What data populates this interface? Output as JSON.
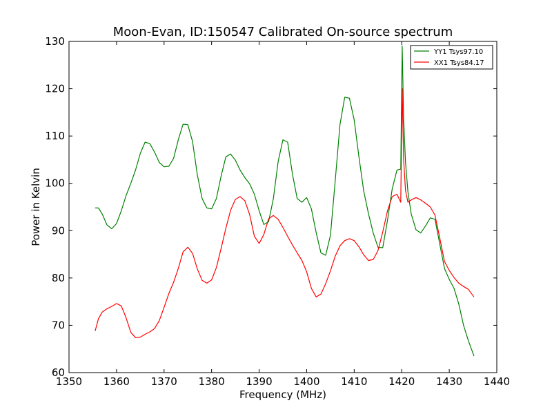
{
  "chart_data": {
    "type": "line",
    "title": "Moon-Evan, ID:150547 Calibrated On-source spectrum",
    "xlabel": "Frequency (MHz)",
    "ylabel": "Power in Kelvin",
    "xlim": [
      1350,
      1440
    ],
    "ylim": [
      60,
      130
    ],
    "xticks": [
      1350,
      1360,
      1370,
      1380,
      1390,
      1400,
      1410,
      1420,
      1430,
      1440
    ],
    "yticks": [
      60,
      70,
      80,
      90,
      100,
      110,
      120,
      130
    ],
    "legend_position": "top-right",
    "series": [
      {
        "name": "YY1 Tsys97.10",
        "color": "#008000",
        "x": [
          1355.5,
          1356.2,
          1357,
          1358,
          1359,
          1360,
          1361,
          1362,
          1363,
          1364,
          1365,
          1366,
          1367,
          1368,
          1369,
          1370,
          1371,
          1372,
          1373,
          1374,
          1375,
          1376,
          1377,
          1378,
          1379,
          1380,
          1381,
          1382,
          1383,
          1384,
          1385,
          1386,
          1387,
          1388,
          1389,
          1390,
          1391,
          1392,
          1393,
          1394,
          1395,
          1396,
          1397,
          1398,
          1399,
          1400,
          1401,
          1402,
          1403,
          1404,
          1405,
          1406,
          1407,
          1408,
          1409,
          1410,
          1411,
          1412,
          1413,
          1414,
          1415,
          1416,
          1417,
          1418,
          1419,
          1419.8,
          1420.1,
          1420.4,
          1420.8,
          1421.3,
          1422,
          1423,
          1424,
          1425,
          1426,
          1427,
          1428,
          1429,
          1430,
          1431,
          1432,
          1433,
          1434,
          1435.2
        ],
        "values": [
          94.8,
          94.8,
          93.5,
          91.2,
          90.4,
          91.5,
          94.2,
          97.4,
          100.0,
          102.8,
          106.3,
          108.7,
          108.4,
          106.6,
          104.4,
          103.5,
          103.6,
          105.3,
          109.2,
          112.5,
          112.4,
          108.8,
          101.8,
          96.8,
          94.8,
          94.6,
          96.8,
          101.5,
          105.6,
          106.2,
          104.9,
          102.8,
          101.2,
          99.9,
          97.7,
          94.2,
          91.3,
          91.9,
          96.8,
          104.6,
          109.2,
          108.7,
          102.0,
          96.8,
          96.0,
          97.0,
          94.6,
          89.6,
          85.3,
          84.8,
          89.0,
          100.5,
          112.4,
          118.2,
          118.0,
          113.4,
          105.6,
          98.4,
          93.6,
          89.5,
          86.5,
          86.4,
          92.2,
          98.8,
          102.8,
          103.0,
          129.0,
          113.5,
          104.5,
          98.2,
          93.5,
          90.2,
          89.5,
          91.0,
          92.7,
          92.4,
          87.2,
          82.0,
          79.7,
          77.8,
          74.5,
          70.0,
          66.8,
          63.5
        ]
      },
      {
        "name": "XX1 Tsys84.17",
        "color": "#ff0000",
        "x": [
          1355.5,
          1356.2,
          1357,
          1358,
          1359,
          1360,
          1361,
          1362,
          1363,
          1364,
          1365,
          1366,
          1367,
          1368,
          1369,
          1370,
          1371,
          1372,
          1373,
          1374,
          1375,
          1376,
          1377,
          1378,
          1379,
          1380,
          1381,
          1382,
          1383,
          1384,
          1385,
          1386,
          1387,
          1388,
          1389,
          1390,
          1391,
          1392,
          1393,
          1394,
          1395,
          1396,
          1397,
          1398,
          1399,
          1400,
          1401,
          1402,
          1403,
          1404,
          1405,
          1406,
          1407,
          1408,
          1409,
          1410,
          1411,
          1412,
          1413,
          1414,
          1415,
          1416,
          1417,
          1418,
          1419,
          1419.8,
          1420.1,
          1420.4,
          1420.8,
          1421.3,
          1422,
          1423,
          1424,
          1425,
          1426,
          1427,
          1428,
          1429,
          1430,
          1431,
          1432,
          1433,
          1434,
          1435.2
        ],
        "values": [
          68.8,
          71.4,
          72.8,
          73.5,
          74.0,
          74.6,
          74.1,
          71.6,
          68.5,
          67.4,
          67.5,
          68.1,
          68.6,
          69.3,
          71.0,
          73.8,
          76.7,
          79.1,
          82.0,
          85.5,
          86.5,
          85.2,
          81.9,
          79.5,
          78.9,
          79.6,
          82.2,
          86.2,
          90.5,
          94.3,
          96.6,
          97.2,
          96.3,
          93.4,
          88.8,
          87.3,
          89.2,
          92.5,
          93.2,
          92.4,
          90.7,
          88.8,
          87.0,
          85.3,
          83.7,
          81.3,
          77.8,
          76.0,
          76.6,
          78.8,
          81.5,
          84.6,
          86.8,
          87.9,
          88.3,
          87.9,
          86.6,
          84.9,
          83.7,
          83.9,
          85.8,
          89.7,
          94.2,
          97.2,
          97.7,
          96.0,
          120.0,
          105.0,
          98.5,
          96.0,
          96.5,
          97.0,
          96.5,
          95.8,
          95.0,
          93.3,
          88.5,
          83.5,
          81.6,
          80.1,
          78.9,
          78.2,
          77.6,
          76.0
        ]
      }
    ]
  }
}
